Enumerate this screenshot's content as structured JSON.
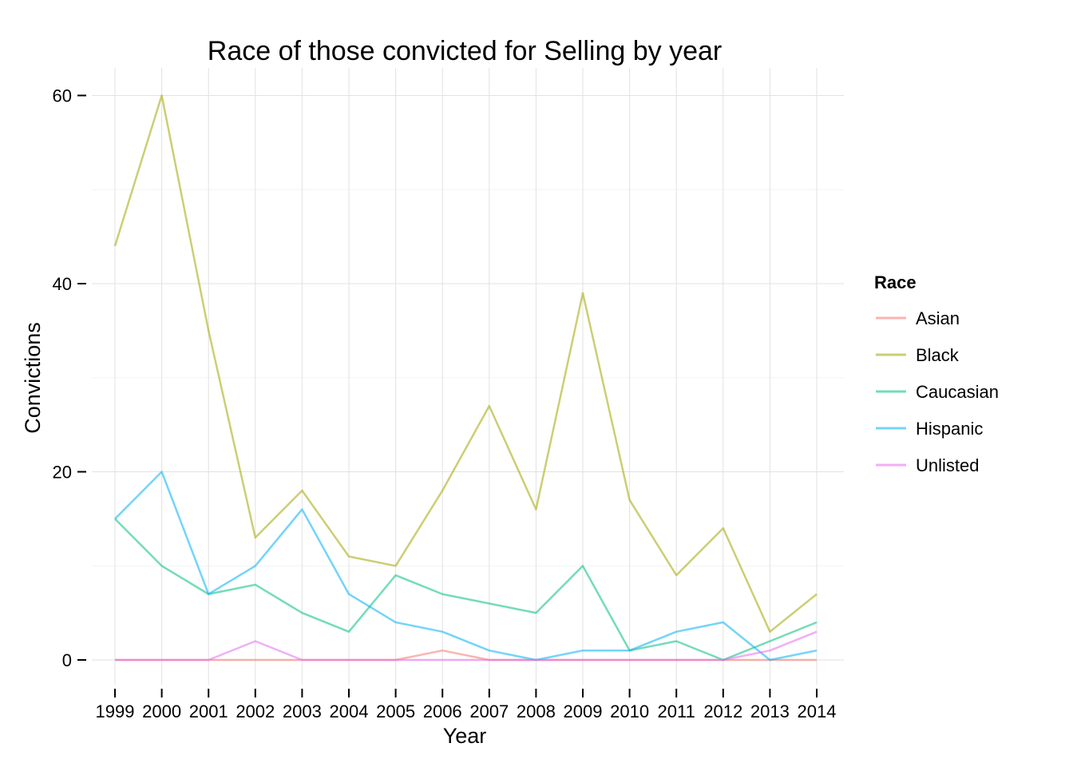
{
  "chart_data": {
    "type": "line",
    "title": "Race of those convicted for Selling by year",
    "xlabel": "Year",
    "ylabel": "Convictions",
    "x": [
      "1999",
      "2000",
      "2001",
      "2002",
      "2003",
      "2004",
      "2005",
      "2006",
      "2007",
      "2008",
      "2009",
      "2010",
      "2011",
      "2012",
      "2013",
      "2014"
    ],
    "ylim": [
      -3,
      62
    ],
    "yticks": [
      0,
      20,
      40,
      60
    ],
    "grid": true,
    "legend": {
      "title": "Race",
      "position": "right"
    },
    "series": [
      {
        "name": "Asian",
        "color": "#F8766D",
        "values": [
          0,
          0,
          0,
          0,
          0,
          0,
          0,
          1,
          0,
          0,
          0,
          0,
          0,
          0,
          0,
          0
        ]
      },
      {
        "name": "Black",
        "color": "#A3A500",
        "values": [
          44,
          60,
          35,
          13,
          18,
          11,
          10,
          18,
          27,
          16,
          39,
          17,
          9,
          14,
          3,
          7
        ]
      },
      {
        "name": "Caucasian",
        "color": "#00BF7D",
        "values": [
          15,
          10,
          7,
          8,
          5,
          3,
          9,
          7,
          6,
          5,
          10,
          1,
          2,
          0,
          2,
          4
        ]
      },
      {
        "name": "Hispanic",
        "color": "#00B0F6",
        "values": [
          15,
          20,
          7,
          10,
          16,
          7,
          4,
          3,
          1,
          0,
          1,
          1,
          3,
          4,
          0,
          1
        ]
      },
      {
        "name": "Unlisted",
        "color": "#E76BF3",
        "values": [
          0,
          0,
          0,
          2,
          0,
          0,
          0,
          0,
          0,
          0,
          0,
          0,
          0,
          0,
          1,
          3
        ]
      }
    ]
  }
}
